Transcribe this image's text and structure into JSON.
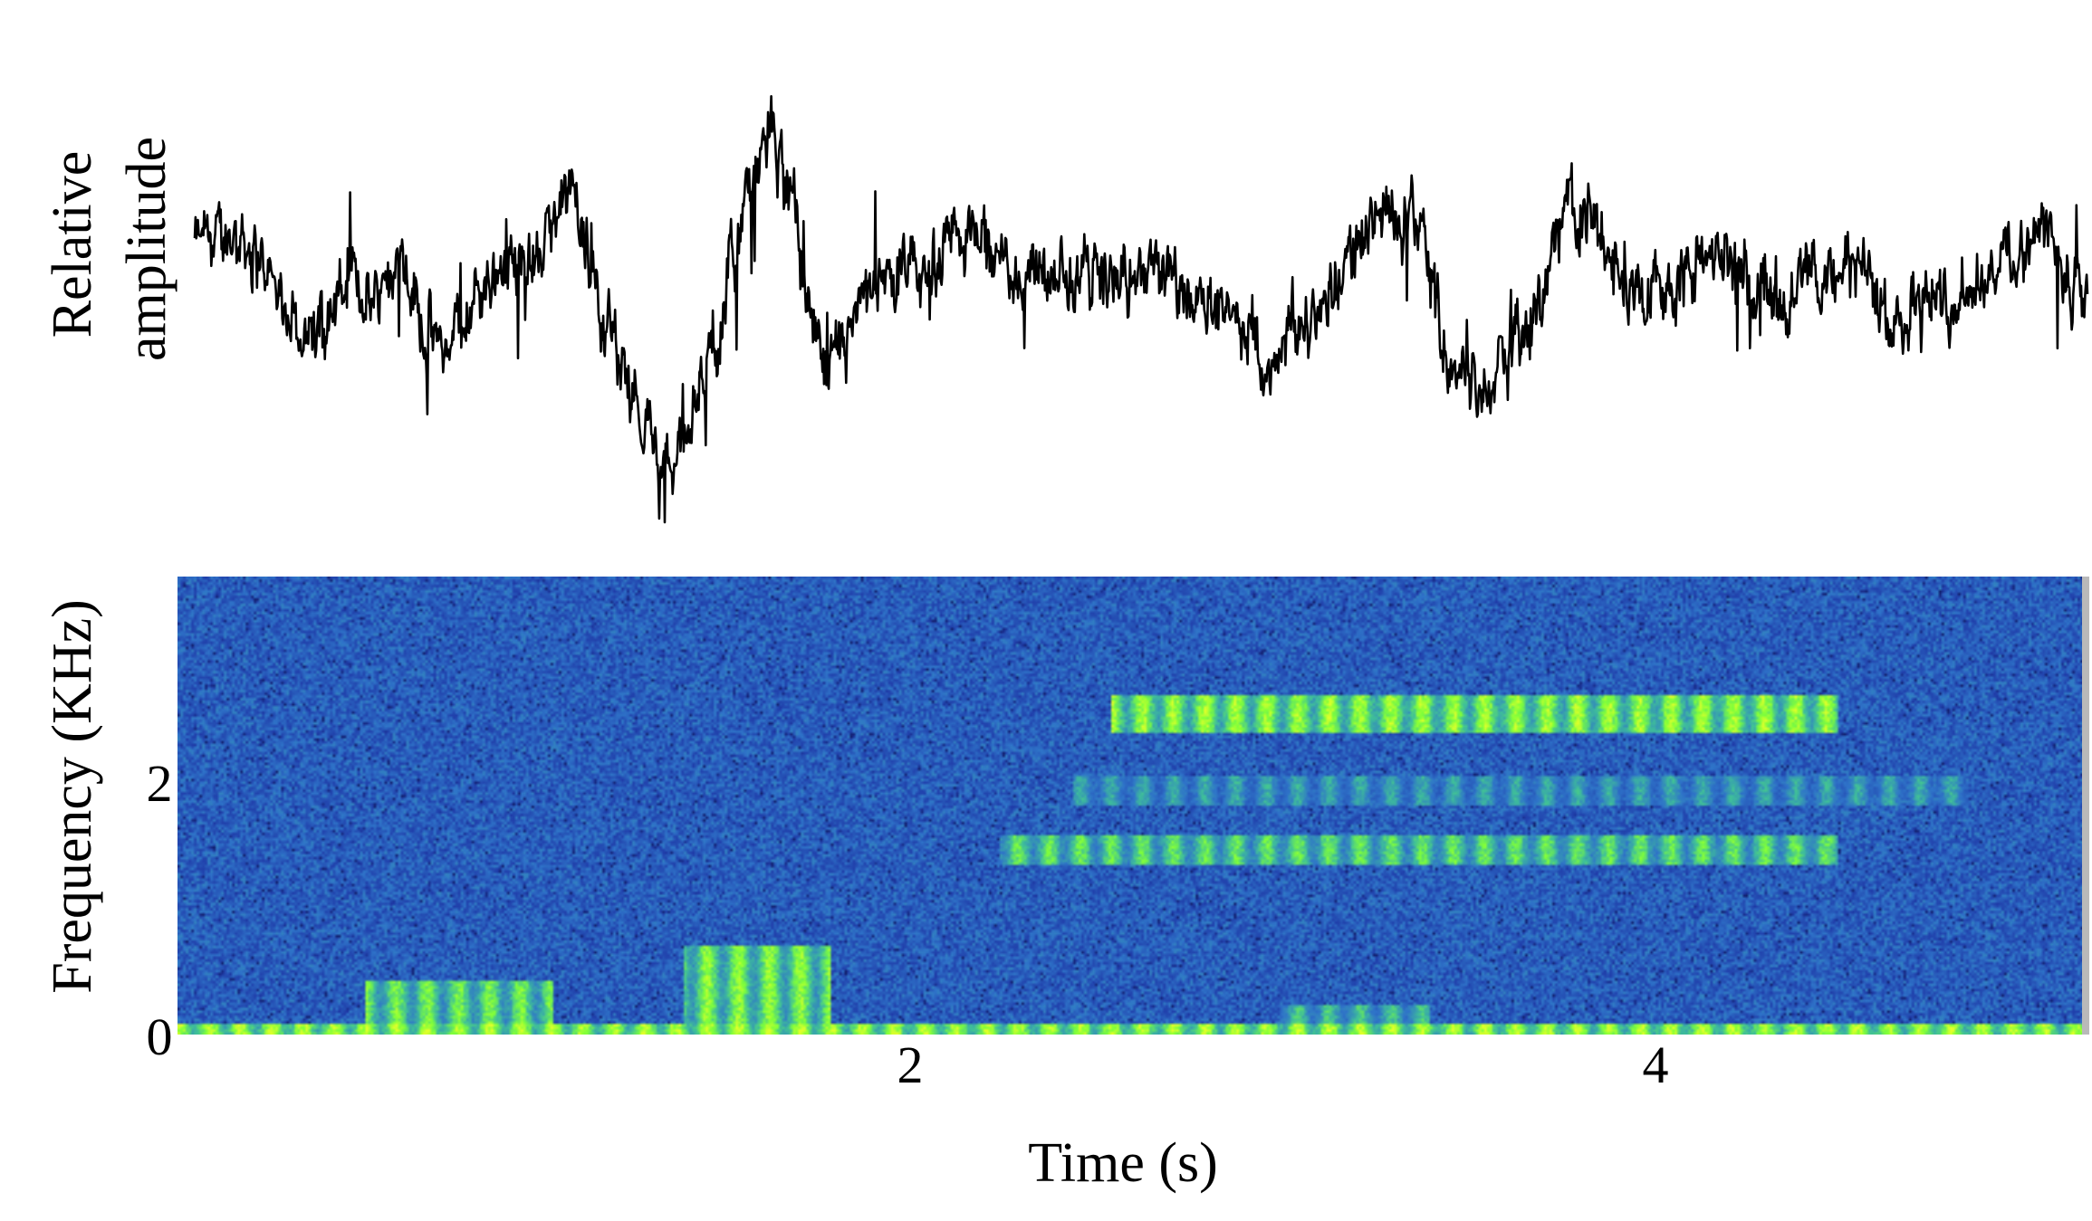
{
  "chart_data": [
    {
      "type": "line",
      "panel": "waveform",
      "ylabel": [
        "Relative",
        "amplitude"
      ],
      "xlim": [
        0,
        5.1
      ],
      "ylim": [
        -1,
        1
      ],
      "grid": false,
      "series": [
        {
          "x": [
            0,
            0.12,
            0.2,
            0.32,
            0.4,
            0.48,
            0.55,
            0.62,
            0.67,
            0.75,
            0.84,
            0.9,
            1.02,
            1.1,
            1.2,
            1.28,
            1.34,
            1.38,
            1.46,
            1.55,
            1.62,
            1.7,
            1.8,
            1.88,
            1.96,
            2.05,
            2.15,
            2.22,
            2.3,
            2.4,
            2.5,
            2.6,
            2.7,
            2.8,
            2.9,
            3.0,
            3.1,
            3.2,
            3.3,
            3.38,
            3.46,
            3.55,
            3.62,
            3.7,
            3.78,
            3.85,
            3.93,
            4.0,
            4.1,
            4.2,
            4.3,
            4.4,
            4.5,
            4.58,
            4.66,
            4.72,
            4.8,
            4.9,
            5.0,
            5.05,
            5.1
          ],
          "y": [
            0.2,
            0.28,
            0.05,
            -0.28,
            0.02,
            -0.05,
            0.25,
            -0.2,
            -0.32,
            -0.05,
            0.15,
            0.08,
            0.45,
            -0.1,
            -0.6,
            -0.98,
            -0.55,
            -0.45,
            0.2,
            0.82,
            0.3,
            -0.52,
            -0.12,
            0.05,
            0.02,
            0.28,
            0.2,
            0.05,
            0.05,
            0.1,
            0.02,
            0.08,
            0.0,
            -0.2,
            -0.35,
            -0.2,
            0.12,
            0.42,
            0.3,
            -0.38,
            -0.5,
            -0.3,
            -0.12,
            0.48,
            0.28,
            0.02,
            0.0,
            0.05,
            0.16,
            0.1,
            -0.02,
            0.1,
            0.08,
            -0.2,
            0.0,
            -0.05,
            0.05,
            0.18,
            0.28,
            0.05,
            0.0
          ]
        }
      ]
    },
    {
      "type": "heatmap",
      "panel": "spectrogram",
      "xlabel": "Time (s)",
      "ylabel": "Frequency (KHz)",
      "xticks": [
        "2",
        "4"
      ],
      "yticks": [
        "0",
        "2"
      ],
      "xlim": [
        0,
        5.1
      ],
      "ylim": [
        0,
        3.1
      ],
      "colormap": [
        "#0b0f4a",
        "#1f3aa8",
        "#2f74c9",
        "#3fbf9a",
        "#7fff3a",
        "#e6ff2a"
      ],
      "tick_values": {
        "x": [
          2,
          4
        ],
        "y": [
          0,
          2
        ]
      },
      "grid": false,
      "features": [
        {
          "t0": 0.5,
          "t1": 1.0,
          "f0": 0.0,
          "f1": 0.35,
          "intensity": 0.85
        },
        {
          "t0": 1.35,
          "t1": 1.75,
          "f0": 0.0,
          "f1": 0.6,
          "intensity": 0.9
        },
        {
          "t0": 2.5,
          "t1": 4.45,
          "f0": 2.05,
          "f1": 2.3,
          "intensity": 0.95
        },
        {
          "t0": 2.2,
          "t1": 4.45,
          "f0": 1.15,
          "f1": 1.35,
          "intensity": 0.8
        },
        {
          "t0": 2.4,
          "t1": 4.8,
          "f0": 1.55,
          "f1": 1.75,
          "intensity": 0.6
        },
        {
          "t0": 2.95,
          "t1": 3.35,
          "f0": 0.0,
          "f1": 0.2,
          "intensity": 0.7
        },
        {
          "t0": 0.0,
          "t1": 5.1,
          "f0": 0.0,
          "f1": 0.06,
          "intensity": 1.0
        }
      ]
    }
  ]
}
